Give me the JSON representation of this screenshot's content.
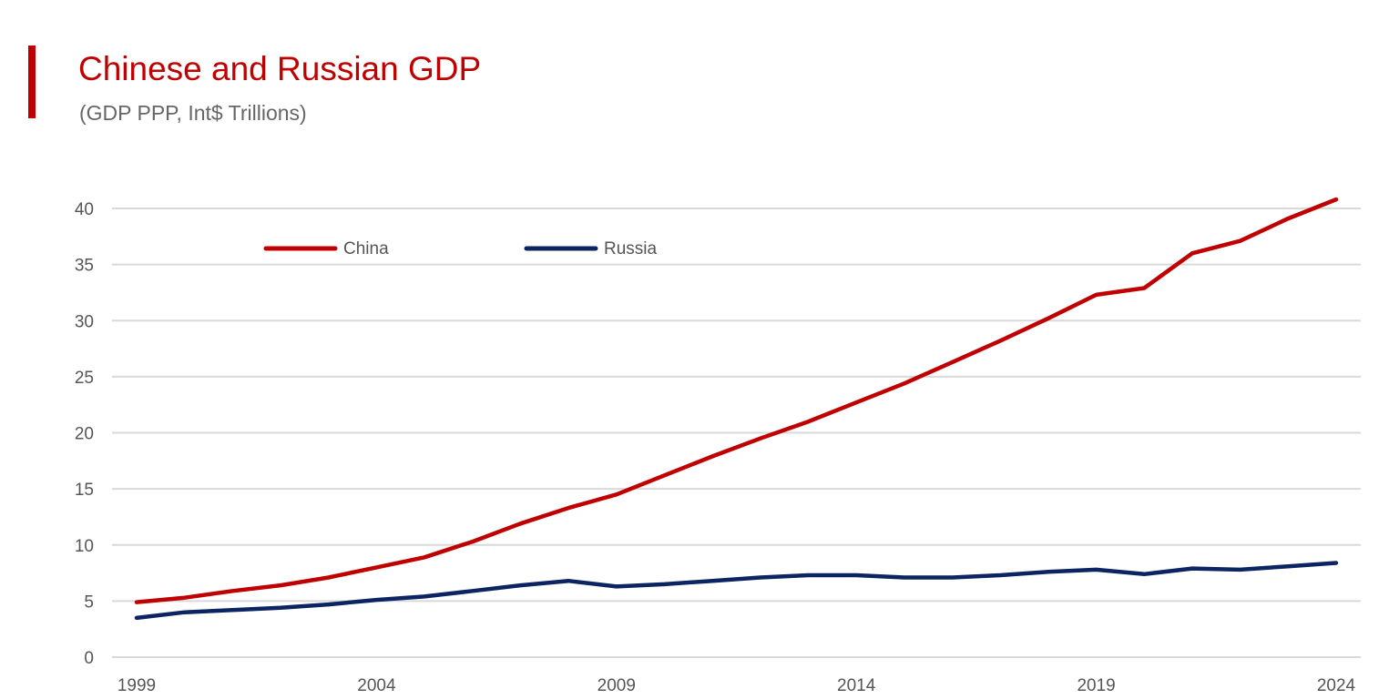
{
  "header": {
    "title": "Chinese and Russian GDP",
    "subtitle": "(GDP PPP, Int$ Trillions)"
  },
  "chart_data": {
    "type": "line",
    "title": "Chinese and Russian GDP",
    "subtitle": "(GDP PPP, Int$ Trillions)",
    "xlabel": "",
    "ylabel": "",
    "x": [
      1999,
      2000,
      2001,
      2002,
      2003,
      2004,
      2005,
      2006,
      2007,
      2008,
      2009,
      2010,
      2011,
      2012,
      2013,
      2014,
      2015,
      2016,
      2017,
      2018,
      2019,
      2020,
      2021,
      2022,
      2023,
      2024
    ],
    "xlim": [
      1999,
      2024
    ],
    "ylim": [
      0,
      40
    ],
    "x_tick_labels": [
      "1999",
      "2004",
      "2009",
      "2014",
      "2019",
      "2024"
    ],
    "y_tick_labels": [
      "0",
      "5",
      "10",
      "15",
      "20",
      "25",
      "30",
      "35",
      "40"
    ],
    "grid": "horizontal",
    "legend_position": "top-left",
    "series": [
      {
        "name": "China",
        "color": "#c00000",
        "values": [
          4.9,
          5.3,
          5.9,
          6.4,
          7.1,
          8.0,
          8.9,
          10.3,
          11.9,
          13.3,
          14.5,
          16.2,
          17.9,
          19.5,
          21.0,
          22.7,
          24.4,
          26.3,
          28.2,
          30.2,
          32.3,
          32.9,
          36.0,
          37.1,
          39.1,
          40.8
        ]
      },
      {
        "name": "Russia",
        "color": "#0c2461",
        "values": [
          3.5,
          4.0,
          4.2,
          4.4,
          4.7,
          5.1,
          5.4,
          5.9,
          6.4,
          6.8,
          6.3,
          6.5,
          6.8,
          7.1,
          7.3,
          7.3,
          7.1,
          7.1,
          7.3,
          7.6,
          7.8,
          7.4,
          7.9,
          7.8,
          8.1,
          8.4
        ]
      }
    ]
  }
}
